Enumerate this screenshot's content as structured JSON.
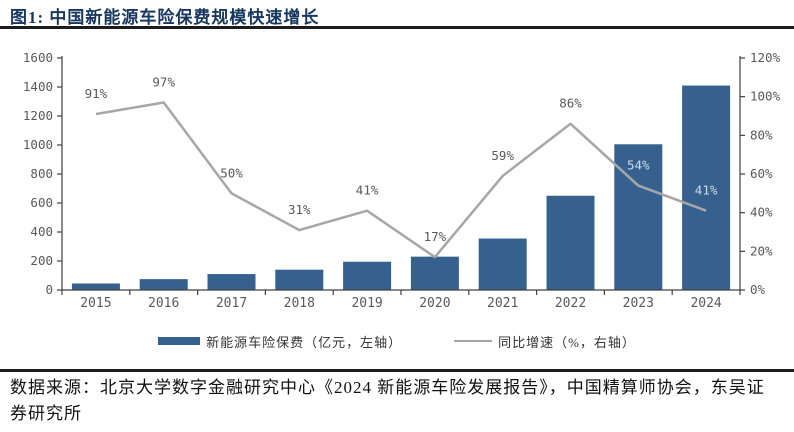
{
  "page": {
    "title": "图1:  中国新能源车险保费规模快速增长",
    "source": "数据来源：北京大学数字金融研究中心《2024 新能源车险发展报告》，中国精算师协会，东吴证券研究所"
  },
  "chart_data": {
    "type": "combo-bar-line",
    "title": "中国新能源车险保费规模快速增长",
    "categories": [
      "2015",
      "2016",
      "2017",
      "2018",
      "2019",
      "2020",
      "2021",
      "2022",
      "2023",
      "2024"
    ],
    "series": [
      {
        "name": "新能源车险保费（亿元，左轴）",
        "type": "bar",
        "axis": "left",
        "values": [
          45,
          75,
          110,
          140,
          195,
          230,
          355,
          650,
          1005,
          1410
        ],
        "color": "#36618e"
      },
      {
        "name": "同比增速（%，右轴）",
        "type": "line",
        "axis": "right",
        "values": [
          91,
          97,
          50,
          31,
          41,
          17,
          59,
          86,
          54,
          41
        ],
        "color": "#a6a6a6",
        "point_labels": [
          "91%",
          "97%",
          "50%",
          "31%",
          "41%",
          "17%",
          "59%",
          "86%",
          "54%",
          "41%"
        ],
        "point_label_colors": [
          "#595959",
          "#595959",
          "#595959",
          "#595959",
          "#595959",
          "#595959",
          "#595959",
          "#595959",
          "#ccd9e8",
          "#ccd9e8"
        ]
      }
    ],
    "left_axis": {
      "min": 0,
      "max": 1600,
      "step": 200,
      "tick_labels": [
        "0",
        "200",
        "400",
        "600",
        "800",
        "1000",
        "1200",
        "1400",
        "1600"
      ]
    },
    "right_axis": {
      "min": 0,
      "max": 120,
      "step": 20,
      "suffix": "%",
      "tick_labels": [
        "0%",
        "20%",
        "40%",
        "60%",
        "80%",
        "100%",
        "120%"
      ]
    },
    "grid": false,
    "legend_position": "bottom"
  },
  "colors": {
    "title": "#17375e",
    "bar": "#36618e",
    "line": "#a6a6a6",
    "axis": "#404040",
    "axis_text": "#595959",
    "rule": "#1c1c1c"
  }
}
